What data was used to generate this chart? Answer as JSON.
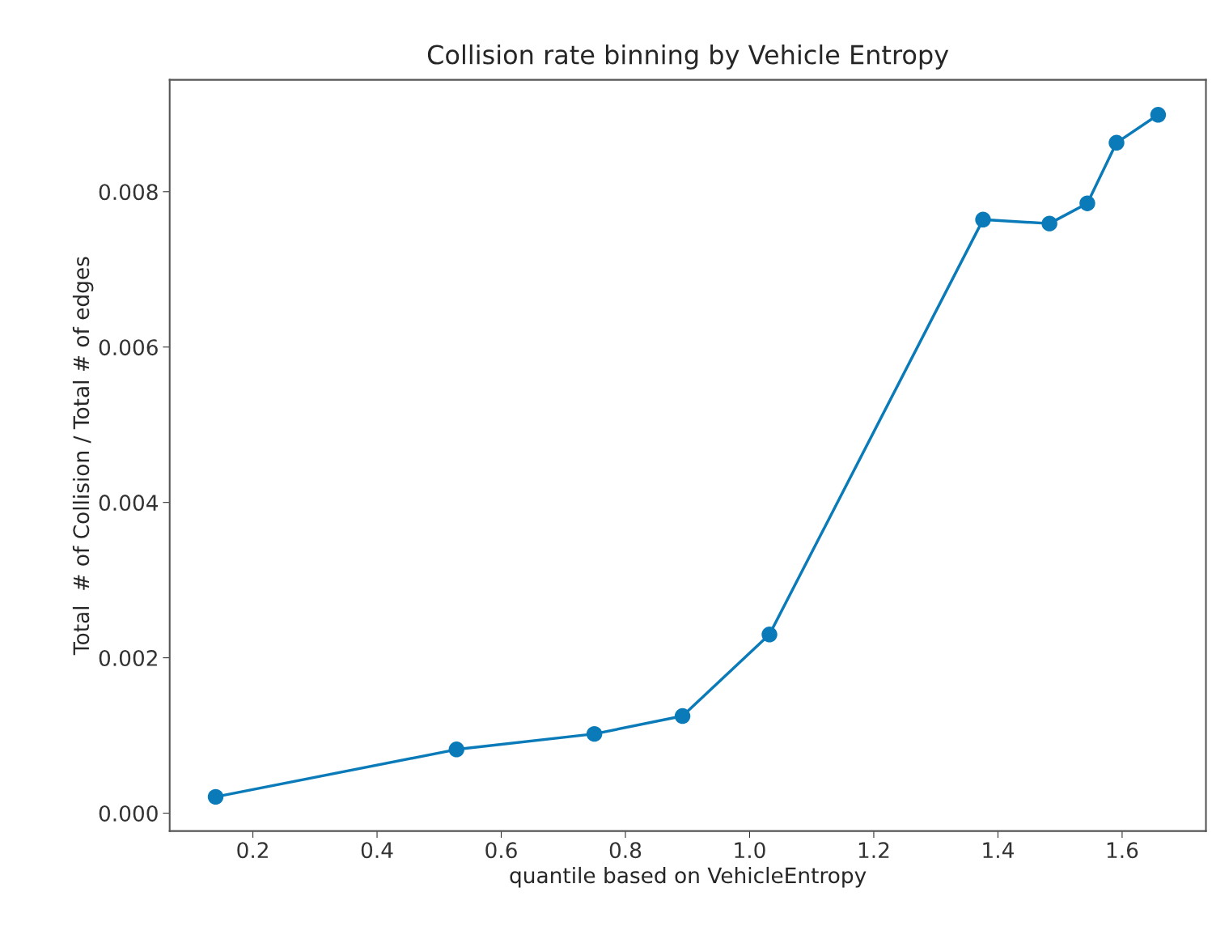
{
  "chart_data": {
    "type": "line",
    "title": "Collision rate binning by Vehicle Entropy",
    "xlabel": "quantile based on VehicleEntropy",
    "ylabel": "Total  # of Collision / Total # of edges",
    "x": [
      0.14,
      0.528,
      0.75,
      0.892,
      1.032,
      1.376,
      1.483,
      1.544,
      1.591,
      1.658
    ],
    "series": [
      {
        "color": "#0a7bb8",
        "values": [
          0.00021,
          0.00082,
          0.00102,
          0.00125,
          0.0023,
          0.00764,
          0.00759,
          0.00785,
          0.00863,
          0.00899
        ]
      }
    ],
    "xlim": [
      0.066,
      1.735
    ],
    "ylim": [
      -0.00023,
      0.00944
    ],
    "xticks": [
      0.2,
      0.4,
      0.6,
      0.8,
      {
        "value": 1.0,
        "label": "1.0"
      },
      1.2,
      1.4,
      1.6
    ],
    "yticks": [
      {
        "value": 0,
        "label": "0.000"
      },
      0.002,
      0.004,
      0.006,
      0.008
    ],
    "marker": "circle",
    "line_style": "solid",
    "grid": false,
    "legend": false
  }
}
